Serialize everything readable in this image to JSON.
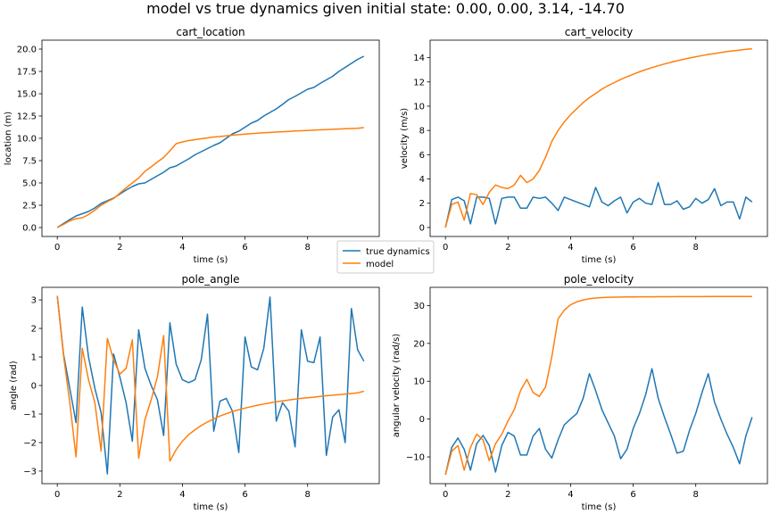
{
  "suptitle": "model vs true dynamics given initial state: 0.00, 0.00, 3.14, -14.70",
  "legend": {
    "placement": "center",
    "entries": [
      {
        "label": "true dynamics",
        "color": "#1f77b4"
      },
      {
        "label": "model",
        "color": "#ff7f0e"
      }
    ]
  },
  "chart_data": [
    {
      "type": "line",
      "title": "cart_location",
      "xlabel": "time (s)",
      "ylabel": "location (m)",
      "xlim": [
        -0.49,
        10.29
      ],
      "ylim": [
        -1.0,
        21.0
      ],
      "xticks": [
        "0",
        "2",
        "4",
        "6",
        "8"
      ],
      "yticks": [
        "0.0",
        "2.5",
        "5.0",
        "7.5",
        "10.0",
        "12.5",
        "15.0",
        "17.5",
        "20.0"
      ],
      "x": [
        0.0,
        0.2,
        0.4,
        0.6,
        0.8,
        1.0,
        1.2,
        1.4,
        1.6,
        1.8,
        2.0,
        2.2,
        2.4,
        2.6,
        2.8,
        3.0,
        3.2,
        3.4,
        3.6,
        3.8,
        4.0,
        4.2,
        4.4,
        4.6,
        4.8,
        5.0,
        5.2,
        5.4,
        5.6,
        5.8,
        6.0,
        6.2,
        6.4,
        6.6,
        6.8,
        7.0,
        7.2,
        7.4,
        7.6,
        7.8,
        8.0,
        8.2,
        8.4,
        8.6,
        8.8,
        9.0,
        9.2,
        9.4,
        9.6,
        9.8
      ],
      "series": [
        {
          "name": "true dynamics",
          "color": "#1f77b4",
          "values": [
            0.0,
            0.45,
            0.9,
            1.3,
            1.55,
            1.8,
            2.2,
            2.7,
            3.0,
            3.3,
            3.75,
            4.2,
            4.6,
            4.9,
            5.0,
            5.4,
            5.8,
            6.2,
            6.7,
            6.9,
            7.3,
            7.7,
            8.15,
            8.5,
            8.85,
            9.2,
            9.5,
            10.0,
            10.5,
            10.8,
            11.25,
            11.7,
            12.0,
            12.5,
            12.9,
            13.3,
            13.8,
            14.35,
            14.7,
            15.1,
            15.5,
            15.7,
            16.15,
            16.55,
            16.95,
            17.5,
            17.95,
            18.4,
            18.85,
            19.2
          ]
        },
        {
          "name": "model",
          "color": "#ff7f0e",
          "values": [
            0.0,
            0.35,
            0.75,
            1.0,
            1.1,
            1.45,
            1.95,
            2.5,
            2.9,
            3.25,
            3.85,
            4.45,
            5.0,
            5.55,
            6.3,
            6.8,
            7.35,
            7.85,
            8.6,
            9.4,
            9.6,
            9.75,
            9.85,
            9.95,
            10.05,
            10.15,
            10.2,
            10.28,
            10.35,
            10.41,
            10.47,
            10.52,
            10.57,
            10.62,
            10.66,
            10.7,
            10.74,
            10.78,
            10.82,
            10.85,
            10.88,
            10.92,
            10.95,
            10.98,
            11.01,
            11.04,
            11.07,
            11.1,
            11.13,
            11.2
          ]
        }
      ]
    },
    {
      "type": "line",
      "title": "cart_velocity",
      "xlabel": "time (s)",
      "ylabel": "velocity (m/s)",
      "xlim": [
        -0.49,
        10.29
      ],
      "ylim": [
        -0.74,
        15.44
      ],
      "xticks": [
        "0",
        "2",
        "4",
        "6",
        "8"
      ],
      "yticks": [
        "0",
        "2",
        "4",
        "6",
        "8",
        "10",
        "12",
        "14"
      ],
      "x": [
        0.0,
        0.2,
        0.4,
        0.6,
        0.8,
        1.0,
        1.2,
        1.4,
        1.6,
        1.8,
        2.0,
        2.2,
        2.4,
        2.6,
        2.8,
        3.0,
        3.2,
        3.4,
        3.6,
        3.8,
        4.0,
        4.2,
        4.4,
        4.6,
        4.8,
        5.0,
        5.2,
        5.4,
        5.6,
        5.8,
        6.0,
        6.2,
        6.4,
        6.6,
        6.8,
        7.0,
        7.2,
        7.4,
        7.6,
        7.8,
        8.0,
        8.2,
        8.4,
        8.6,
        8.8,
        9.0,
        9.2,
        9.4,
        9.6,
        9.8
      ],
      "series": [
        {
          "name": "true dynamics",
          "color": "#1f77b4",
          "values": [
            0.0,
            2.3,
            2.5,
            2.2,
            0.3,
            2.5,
            2.5,
            2.4,
            0.3,
            2.4,
            2.5,
            2.5,
            1.6,
            1.6,
            2.5,
            2.4,
            2.5,
            2.0,
            1.4,
            2.5,
            2.3,
            2.1,
            1.9,
            1.7,
            3.3,
            2.1,
            1.8,
            2.2,
            2.5,
            1.2,
            2.1,
            2.4,
            2.0,
            1.9,
            3.7,
            1.9,
            1.9,
            2.2,
            1.5,
            1.7,
            2.4,
            2.0,
            2.3,
            3.2,
            1.8,
            2.1,
            2.1,
            0.7,
            2.5,
            2.1
          ]
        },
        {
          "name": "model",
          "color": "#ff7f0e",
          "values": [
            0.0,
            1.9,
            2.1,
            0.6,
            2.8,
            2.7,
            1.9,
            2.9,
            3.5,
            3.3,
            3.2,
            3.5,
            4.3,
            3.7,
            4.0,
            4.7,
            5.8,
            7.1,
            8.0,
            8.7,
            9.3,
            9.8,
            10.3,
            10.7,
            11.05,
            11.4,
            11.7,
            11.95,
            12.2,
            12.42,
            12.63,
            12.83,
            13.01,
            13.18,
            13.33,
            13.48,
            13.61,
            13.74,
            13.86,
            13.97,
            14.07,
            14.17,
            14.26,
            14.34,
            14.42,
            14.5,
            14.56,
            14.62,
            14.68,
            14.72
          ]
        }
      ]
    },
    {
      "type": "line",
      "title": "pole_angle",
      "xlabel": "time (s)",
      "ylabel": "angle (rad)",
      "xlim": [
        -0.49,
        10.29
      ],
      "ylim": [
        -3.44,
        3.44
      ],
      "xticks": [
        "0",
        "2",
        "4",
        "6",
        "8"
      ],
      "yticks": [
        "−3",
        "−2",
        "−1",
        "0",
        "1",
        "2",
        "3"
      ],
      "x": [
        0.0,
        0.2,
        0.4,
        0.6,
        0.8,
        1.0,
        1.2,
        1.4,
        1.6,
        1.8,
        2.0,
        2.2,
        2.4,
        2.6,
        2.8,
        3.0,
        3.2,
        3.4,
        3.6,
        3.8,
        4.0,
        4.2,
        4.4,
        4.6,
        4.8,
        5.0,
        5.2,
        5.4,
        5.6,
        5.8,
        6.0,
        6.2,
        6.4,
        6.6,
        6.8,
        7.0,
        7.2,
        7.4,
        7.6,
        7.8,
        8.0,
        8.2,
        8.4,
        8.6,
        8.8,
        9.0,
        9.2,
        9.4,
        9.6,
        9.8
      ],
      "series": [
        {
          "name": "true dynamics",
          "color": "#1f77b4",
          "values": [
            3.14,
            1.1,
            -0.1,
            -1.3,
            2.75,
            1.0,
            -0.1,
            -0.95,
            -3.1,
            1.1,
            0.3,
            -0.6,
            -1.95,
            1.95,
            0.6,
            0.0,
            -0.5,
            -1.75,
            2.2,
            0.75,
            0.2,
            0.1,
            0.2,
            0.9,
            2.5,
            -1.6,
            -0.55,
            -0.45,
            -0.9,
            -2.35,
            1.7,
            0.65,
            0.55,
            1.3,
            3.1,
            -1.25,
            -0.6,
            -0.9,
            -2.15,
            1.95,
            0.85,
            0.8,
            1.7,
            -2.45,
            -1.1,
            -0.85,
            -2.0,
            2.7,
            1.25,
            0.85
          ]
        },
        {
          "name": "model",
          "color": "#ff7f0e",
          "values": [
            3.14,
            1.05,
            -0.6,
            -2.5,
            1.3,
            0.2,
            -0.6,
            -2.3,
            1.65,
            0.9,
            0.4,
            0.6,
            1.6,
            -2.55,
            -1.2,
            -0.5,
            0.3,
            1.75,
            -2.65,
            -2.25,
            -1.95,
            -1.72,
            -1.55,
            -1.4,
            -1.28,
            -1.17,
            -1.07,
            -0.99,
            -0.91,
            -0.85,
            -0.79,
            -0.74,
            -0.69,
            -0.65,
            -0.61,
            -0.57,
            -0.54,
            -0.51,
            -0.48,
            -0.45,
            -0.43,
            -0.41,
            -0.38,
            -0.36,
            -0.34,
            -0.32,
            -0.3,
            -0.28,
            -0.26,
            -0.2
          ]
        }
      ]
    },
    {
      "type": "line",
      "title": "pole_velocity",
      "xlabel": "time (s)",
      "ylabel": "angular velocity (rad/s)",
      "xlim": [
        -0.49,
        10.29
      ],
      "ylim": [
        -17.07,
        34.82
      ],
      "xticks": [
        "0",
        "2",
        "4",
        "6",
        "8"
      ],
      "yticks": [
        "−10",
        "0",
        "10",
        "20",
        "30"
      ],
      "x": [
        0.0,
        0.2,
        0.4,
        0.6,
        0.8,
        1.0,
        1.2,
        1.4,
        1.6,
        1.8,
        2.0,
        2.2,
        2.4,
        2.6,
        2.8,
        3.0,
        3.2,
        3.4,
        3.6,
        3.8,
        4.0,
        4.2,
        4.4,
        4.6,
        4.8,
        5.0,
        5.2,
        5.4,
        5.6,
        5.8,
        6.0,
        6.2,
        6.4,
        6.6,
        6.8,
        7.0,
        7.2,
        7.4,
        7.6,
        7.8,
        8.0,
        8.2,
        8.4,
        8.6,
        8.8,
        9.0,
        9.2,
        9.4,
        9.6,
        9.8
      ],
      "series": [
        {
          "name": "true dynamics",
          "color": "#1f77b4",
          "values": [
            -14.7,
            -7.5,
            -5.0,
            -8.0,
            -13.5,
            -6.5,
            -4.3,
            -7.0,
            -14.0,
            -7.0,
            -3.5,
            -4.5,
            -9.5,
            -9.5,
            -4.5,
            -2.5,
            -8.0,
            -10.3,
            -5.5,
            -1.5,
            0.0,
            1.5,
            5.5,
            12.0,
            7.5,
            2.5,
            -1.0,
            -4.5,
            -10.5,
            -8.0,
            -2.5,
            1.5,
            6.5,
            13.3,
            5.5,
            0.5,
            -4.0,
            -9.0,
            -8.5,
            -3.0,
            1.5,
            7.0,
            12.0,
            4.5,
            0.0,
            -4.0,
            -7.5,
            -11.8,
            -4.5,
            0.5
          ]
        },
        {
          "name": "model",
          "color": "#ff7f0e",
          "values": [
            -14.7,
            -8.5,
            -7.0,
            -13.5,
            -7.5,
            -4.0,
            -5.5,
            -11.0,
            -6.5,
            -4.0,
            -0.5,
            2.5,
            7.5,
            10.5,
            7.0,
            6.0,
            8.5,
            16.5,
            26.5,
            28.8,
            30.2,
            31.0,
            31.5,
            31.8,
            32.0,
            32.1,
            32.2,
            32.23,
            32.26,
            32.28,
            32.3,
            32.31,
            32.32,
            32.33,
            32.34,
            32.35,
            32.35,
            32.36,
            32.36,
            32.37,
            32.37,
            32.37,
            32.38,
            32.38,
            32.38,
            32.38,
            32.39,
            32.39,
            32.39,
            32.4
          ]
        }
      ]
    }
  ]
}
